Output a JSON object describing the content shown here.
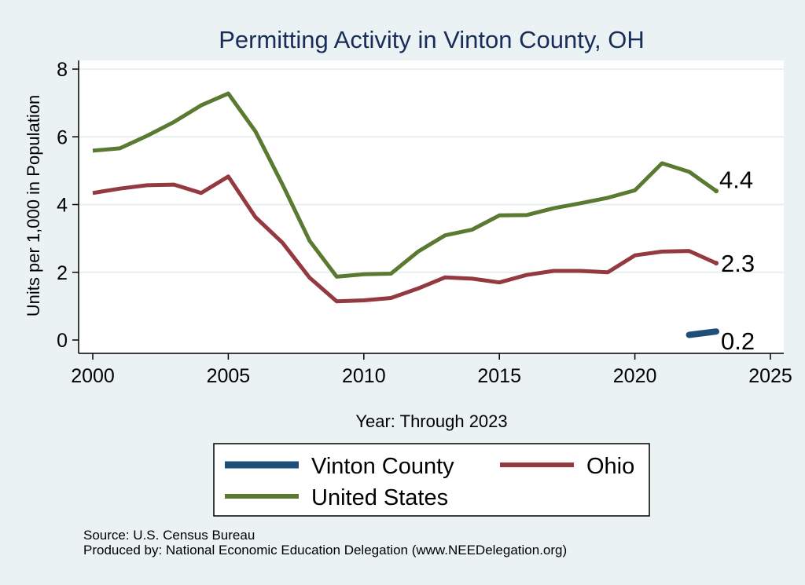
{
  "chart_data": {
    "type": "line",
    "title": "Permitting Activity in Vinton County, OH",
    "xlabel": "Year: Through 2023",
    "ylabel": "Units per 1,000 in Population",
    "xlim": [
      2000,
      2025
    ],
    "ylim": [
      0,
      8
    ],
    "xticks": [
      2000,
      2005,
      2010,
      2015,
      2020,
      2025
    ],
    "yticks": [
      0,
      2,
      4,
      6,
      8
    ],
    "grid": true,
    "legend_position": "bottom",
    "series": [
      {
        "name": "Vinton County",
        "color": "#1f4e79",
        "x": [
          2022,
          2023
        ],
        "values": [
          0.15,
          0.25
        ],
        "end_label": "0.2"
      },
      {
        "name": "Ohio",
        "color": "#93393f",
        "x": [
          2000,
          2001,
          2002,
          2003,
          2004,
          2005,
          2006,
          2007,
          2008,
          2009,
          2010,
          2011,
          2012,
          2013,
          2014,
          2015,
          2016,
          2017,
          2018,
          2019,
          2020,
          2021,
          2022,
          2023
        ],
        "values": [
          4.34,
          4.47,
          4.57,
          4.59,
          4.34,
          4.83,
          3.63,
          2.87,
          1.84,
          1.14,
          1.17,
          1.24,
          1.52,
          1.85,
          1.81,
          1.7,
          1.92,
          2.04,
          2.04,
          2.0,
          2.5,
          2.61,
          2.63,
          2.27
        ],
        "end_label": "2.3"
      },
      {
        "name": "United States",
        "color": "#5a7a32",
        "x": [
          2000,
          2001,
          2002,
          2003,
          2004,
          2005,
          2006,
          2007,
          2008,
          2009,
          2010,
          2011,
          2012,
          2013,
          2014,
          2015,
          2016,
          2017,
          2018,
          2019,
          2020,
          2021,
          2022,
          2023
        ],
        "values": [
          5.59,
          5.66,
          6.03,
          6.44,
          6.93,
          7.28,
          6.16,
          4.59,
          2.93,
          1.87,
          1.94,
          1.96,
          2.61,
          3.09,
          3.26,
          3.68,
          3.69,
          3.89,
          4.04,
          4.2,
          4.42,
          5.22,
          4.97,
          4.4
        ],
        "end_label": "4.4"
      }
    ]
  },
  "legend": {
    "items": [
      "Vinton County",
      "Ohio",
      "United States"
    ]
  },
  "footer": {
    "source": "Source: U.S. Census Bureau",
    "produced_by": "Produced by: National Economic Education Delegation (www.NEEDelegation.org)"
  }
}
